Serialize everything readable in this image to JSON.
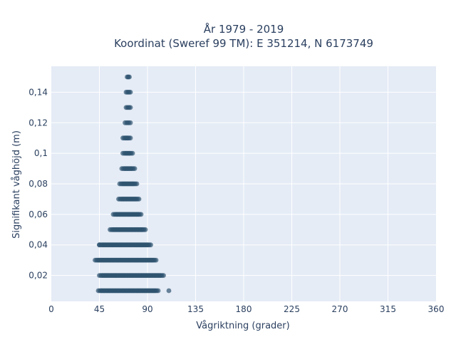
{
  "chart_data": {
    "type": "scatter",
    "title_lines": [
      "År 1979 - 2019",
      "Koordinat (Sweref 99 TM): E 351214, N 6173749"
    ],
    "xlabel": "Vågriktning (grader)",
    "ylabel": "Signifikant våghöjd (m)",
    "xlim": [
      0,
      360
    ],
    "ylim": [
      0.003,
      0.157
    ],
    "x_ticks": [
      0,
      45,
      90,
      135,
      180,
      225,
      270,
      315,
      360
    ],
    "x_tick_labels": [
      "0",
      "45",
      "90",
      "135",
      "180",
      "225",
      "270",
      "315",
      "360"
    ],
    "y_ticks": [
      0.02,
      0.04,
      0.06,
      0.08,
      0.1,
      0.12,
      0.14
    ],
    "y_tick_labels": [
      "0,02",
      "0,04",
      "0,06",
      "0,08",
      "0,1",
      "0,12",
      "0,14"
    ],
    "grid": true,
    "colors": {
      "marker": "#2f5470",
      "plot_bg": "#e5ecf6",
      "grid": "#ffffff",
      "text": "#2a3f5f"
    },
    "series": [
      {
        "points": [
          {
            "y": 0.01,
            "x_min": 44,
            "x_max": 100,
            "outliers": [
              110
            ]
          },
          {
            "y": 0.02,
            "x_min": 45,
            "x_max": 105
          },
          {
            "y": 0.03,
            "x_min": 41,
            "x_max": 98
          },
          {
            "y": 0.04,
            "x_min": 45,
            "x_max": 93,
            "outliers": [
              45
            ]
          },
          {
            "y": 0.05,
            "x_min": 55,
            "x_max": 88
          },
          {
            "y": 0.06,
            "x_min": 58,
            "x_max": 84
          },
          {
            "y": 0.07,
            "x_min": 63,
            "x_max": 82
          },
          {
            "y": 0.08,
            "x_min": 64,
            "x_max": 80
          },
          {
            "y": 0.09,
            "x_min": 66,
            "x_max": 78
          },
          {
            "y": 0.1,
            "x_min": 67,
            "x_max": 76
          },
          {
            "y": 0.11,
            "x_min": 67,
            "x_max": 74
          },
          {
            "y": 0.12,
            "x_min": 69,
            "x_max": 74
          },
          {
            "y": 0.13,
            "x_min": 70,
            "x_max": 74
          },
          {
            "y": 0.14,
            "x_min": 70,
            "x_max": 74
          },
          {
            "y": 0.15,
            "x_min": 71,
            "x_max": 73
          }
        ]
      }
    ]
  }
}
